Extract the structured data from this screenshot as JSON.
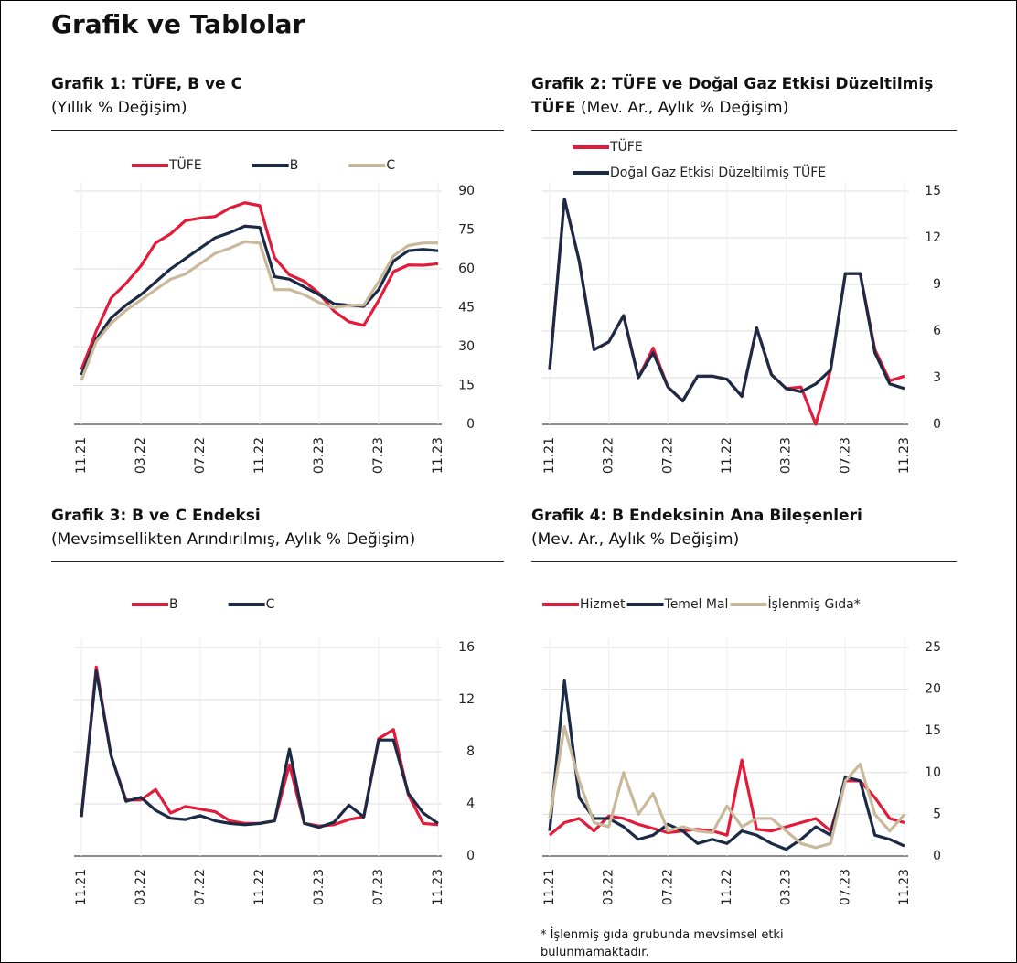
{
  "title": "Grafik ve Tablolar",
  "footnote": "* İşlenmiş gıda grubunda mevsimsel etki bulunmamaktadır.",
  "chart_data": [
    {
      "type": "line",
      "title": "Grafik 1: TÜFE, B ve C",
      "subtitle": "(Yıllık % Değişim)",
      "categories": [
        "11.21",
        null,
        null,
        null,
        "03.22",
        null,
        null,
        null,
        "07.22",
        null,
        null,
        null,
        "11.22",
        null,
        null,
        null,
        "03.23",
        null,
        null,
        null,
        "07.23",
        null,
        null,
        null,
        "11.23"
      ],
      "series": [
        {
          "name": "TÜFE",
          "color": "#e31b3a",
          "values": [
            21,
            36,
            48.7,
            54.4,
            61.1,
            70,
            73.5,
            78.6,
            79.6,
            80.2,
            83.5,
            85.5,
            84.4,
            64.3,
            57.7,
            55.2,
            50.5,
            43.7,
            39.6,
            38.2,
            47.8,
            58.9,
            61.5,
            61.4,
            62
          ]
        },
        {
          "name": "B",
          "color": "#1c2b45",
          "values": [
            19,
            33,
            41,
            46,
            50,
            55,
            60,
            64,
            68,
            72,
            74,
            76.5,
            76,
            57,
            56,
            53,
            50,
            46.5,
            46,
            45.5,
            52,
            63,
            67,
            67.5,
            67
          ]
        },
        {
          "name": "C",
          "color": "#c9b99a",
          "values": [
            17,
            32,
            39,
            44,
            48,
            52,
            56,
            58,
            62,
            66,
            68,
            70.5,
            70,
            52,
            52,
            50,
            47,
            45,
            46,
            46,
            55,
            65,
            69,
            70,
            70
          ]
        }
      ],
      "ylim": [
        0,
        90
      ],
      "yticks": [
        0,
        15,
        30,
        45,
        60,
        75,
        90
      ],
      "grid": true,
      "legend": "top"
    },
    {
      "type": "line",
      "title": "Grafik 2: TÜFE ve Doğal Gaz Etkisi Düzeltilmiş TÜFE",
      "subtitle": "(Mev. Ar., Aylık % Değişim)",
      "categories": [
        "11.21",
        null,
        null,
        null,
        "03.22",
        null,
        null,
        null,
        "07.22",
        null,
        null,
        null,
        "11.22",
        null,
        null,
        null,
        "03.23",
        null,
        null,
        null,
        "07.23",
        null,
        null,
        null,
        "11.23"
      ],
      "series": [
        {
          "name": "TÜFE",
          "color": "#e31b3a",
          "values": [
            3.5,
            14.5,
            10.5,
            4.8,
            5.3,
            7.0,
            3.0,
            4.9,
            2.4,
            1.5,
            3.1,
            3.1,
            2.9,
            1.8,
            6.2,
            3.2,
            2.3,
            2.4,
            0.0,
            3.5,
            9.7,
            9.7,
            4.8,
            2.8,
            3.1
          ]
        },
        {
          "name": "Doğal Gaz Etkisi Düzeltilmiş TÜFE",
          "color": "#1c2b45",
          "values": [
            3.5,
            14.5,
            10.5,
            4.8,
            5.3,
            7.0,
            3.0,
            4.6,
            2.4,
            1.5,
            3.1,
            3.1,
            2.9,
            1.8,
            6.2,
            3.2,
            2.3,
            2.1,
            2.6,
            3.5,
            9.7,
            9.7,
            4.6,
            2.6,
            2.3
          ]
        }
      ],
      "ylim": [
        0,
        15
      ],
      "yticks": [
        0,
        3,
        6,
        9,
        12,
        15
      ],
      "grid": true,
      "legend": "top-left"
    },
    {
      "type": "line",
      "title": "Grafik 3: B ve C Endeksi",
      "subtitle": "(Mevsimsellikten Arındırılmış, Aylık % Değişim)",
      "categories": [
        "11.21",
        null,
        null,
        null,
        "03.22",
        null,
        null,
        null,
        "07.22",
        null,
        null,
        null,
        "11.22",
        null,
        null,
        null,
        "03.23",
        null,
        null,
        null,
        "07.23",
        null,
        null,
        null,
        "11.23"
      ],
      "series": [
        {
          "name": "B",
          "color": "#e31b3a",
          "values": [
            3.0,
            14.5,
            7.7,
            4.3,
            4.3,
            5.1,
            3.3,
            3.8,
            3.6,
            3.4,
            2.7,
            2.5,
            2.5,
            2.7,
            7.0,
            2.5,
            2.3,
            2.4,
            2.8,
            3.0,
            9.0,
            9.7,
            4.7,
            2.5,
            2.4
          ]
        },
        {
          "name": "C",
          "color": "#1c2b45",
          "values": [
            3.0,
            14.2,
            7.7,
            4.2,
            4.5,
            3.5,
            2.9,
            2.8,
            3.1,
            2.7,
            2.5,
            2.4,
            2.5,
            2.7,
            8.2,
            2.5,
            2.2,
            2.6,
            3.9,
            3.0,
            8.9,
            8.9,
            4.8,
            3.3,
            2.5
          ]
        }
      ],
      "ylim": [
        0,
        16
      ],
      "yticks": [
        0,
        4,
        8,
        12,
        16
      ],
      "grid": true,
      "legend": "top"
    },
    {
      "type": "line",
      "title": "Grafik 4: B Endeksinin Ana Bileşenleri",
      "subtitle": "(Mev. Ar., Aylık % Değişim)",
      "categories": [
        "11.21",
        null,
        null,
        null,
        "03.22",
        null,
        null,
        null,
        "07.22",
        null,
        null,
        null,
        "11.22",
        null,
        null,
        null,
        "03.23",
        null,
        null,
        null,
        "07.23",
        null,
        null,
        null,
        "11.23"
      ],
      "series": [
        {
          "name": "Hizmet",
          "color": "#e31b3a",
          "values": [
            2.5,
            4,
            4.5,
            3.0,
            4.8,
            4.5,
            3.8,
            3.3,
            2.8,
            3.0,
            3.2,
            3.0,
            2.5,
            11.5,
            3.2,
            3.0,
            3.5,
            4.0,
            4.5,
            3.0,
            9.0,
            9.0,
            7.0,
            4.5,
            4.0
          ]
        },
        {
          "name": "Temel Mal",
          "color": "#1c2b45",
          "values": [
            3,
            21,
            7,
            4.5,
            4.5,
            3.5,
            2,
            2.5,
            3.8,
            3.0,
            1.5,
            2.0,
            1.5,
            3.0,
            2.5,
            1.5,
            0.8,
            2.0,
            3.5,
            2.5,
            9.5,
            9.0,
            2.5,
            2.0,
            1.2
          ]
        },
        {
          "name": "İşlenmiş Gıda*",
          "color": "#c9b99a",
          "values": [
            4.5,
            15.5,
            9,
            4,
            3.5,
            10,
            5,
            7.5,
            3,
            3.5,
            3,
            2.8,
            6,
            3.5,
            4.5,
            4.5,
            3,
            1.5,
            1,
            1.5,
            9,
            11,
            5,
            3,
            5
          ]
        }
      ],
      "ylim": [
        0,
        25
      ],
      "yticks": [
        0,
        5,
        10,
        15,
        20,
        25
      ],
      "grid": true,
      "legend": "top"
    }
  ]
}
